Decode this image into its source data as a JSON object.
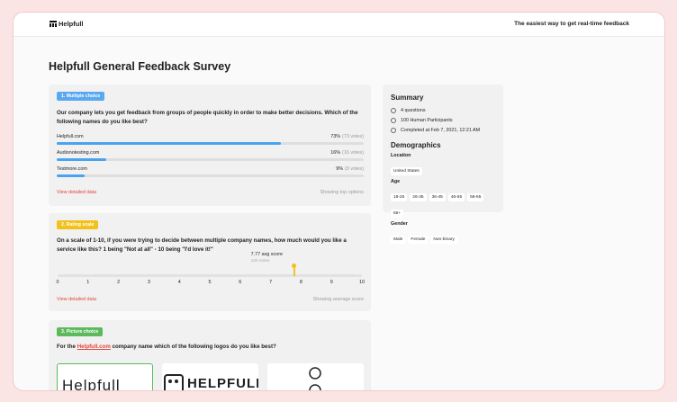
{
  "header": {
    "logo": "Helpfull",
    "tagline": "The easiest way to get real-time feedback"
  },
  "title": "Helpfull General Feedback Survey",
  "questions": [
    {
      "badge": "1. Multiple choice",
      "text": "Our company lets you get feedback from groups of people quickly in order to make better decisions. Which of the following names do you like best?",
      "options": [
        {
          "name": "Helpfull.com",
          "percent": 73,
          "percent_label": "73%",
          "votes": "(73 votes)"
        },
        {
          "name": "Audionotesting.com",
          "percent": 16,
          "percent_label": "16%",
          "votes": "(16 votes)"
        },
        {
          "name": "Testmore.com",
          "percent": 9,
          "percent_label": "9%",
          "votes": "(9 votes)"
        }
      ],
      "link": "View detailed data",
      "note": "Showing top options"
    },
    {
      "badge": "2. Rating scale",
      "text": "On a scale of 1-10, if you were trying to decide between multiple company names, how much would you like a service like this? 1 being \"Not at all\" - 10 being \"I'd love it!\"",
      "scale": {
        "xlim": [
          0,
          10
        ],
        "xticks": [
          0,
          1,
          2,
          3,
          4,
          5,
          6,
          7,
          8,
          9,
          10
        ],
        "avg": 7.77,
        "avg_label": "7.77 avg score",
        "votes": "100 votes"
      },
      "link": "View detailed data",
      "note": "Showing average score"
    },
    {
      "badge": "3. Picture choice",
      "text_before": "For the",
      "link_text": "Helpfull.com",
      "text_after": "company name which of the following logos do you like best?",
      "pictures": [
        "Helpfull",
        "HELPFULL"
      ]
    }
  ],
  "summary": {
    "title": "Summary",
    "items": [
      "4 questions",
      "100 Human Participants",
      "Completed at Feb 7, 2021, 12:21 AM"
    ]
  },
  "demographics": {
    "title": "Demographics",
    "groups": [
      {
        "label": "Location",
        "chips": [
          "United States"
        ]
      },
      {
        "label": "Age",
        "chips": [
          "18-25",
          "26-35",
          "36-45",
          "46-55",
          "56-65",
          "66+"
        ]
      },
      {
        "label": "Gender",
        "chips": [
          "Male",
          "Female",
          "Non-binary"
        ]
      }
    ]
  }
}
